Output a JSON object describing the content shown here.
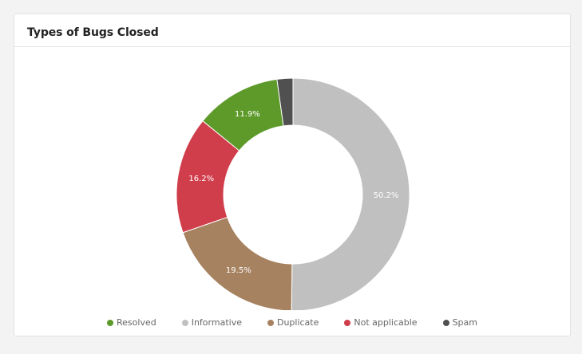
{
  "card": {
    "title": "Types of Bugs Closed"
  },
  "chart_data": {
    "type": "pie",
    "donut": true,
    "title": "Types of Bugs Closed",
    "legend_position": "bottom",
    "categories": [
      "Resolved",
      "Informative",
      "Duplicate",
      "Not applicable",
      "Spam"
    ],
    "values": [
      11.9,
      50.2,
      19.5,
      16.2,
      2.2
    ],
    "value_labels": [
      "11.9%",
      "50.2%",
      "19.5%",
      "16.2%",
      ""
    ],
    "colors": [
      "#5e9a2a",
      "#c0c0c0",
      "#a68260",
      "#d03d4b",
      "#505050"
    ],
    "draw_order": [
      1,
      2,
      3,
      0,
      4
    ]
  }
}
